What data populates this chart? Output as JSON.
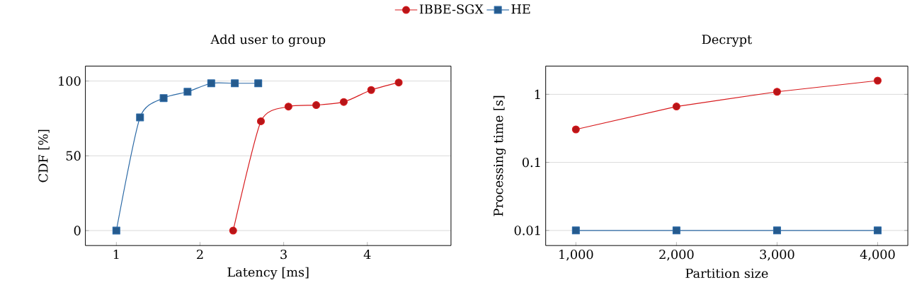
{
  "chart_data": [
    {
      "type": "line",
      "title": "Add user to group",
      "xlabel": "Latency [ms]",
      "ylabel": "CDF [%]",
      "xlim": [
        0.63,
        5.0
      ],
      "ylim": [
        -10,
        110
      ],
      "xticks": [
        1,
        2,
        3,
        4
      ],
      "yticks": [
        0,
        50,
        100
      ],
      "grid": "y",
      "legend": "top",
      "series": [
        {
          "name": "IBBE-SGX",
          "color": "#d7191c",
          "marker": "circle",
          "x": [
            2.396,
            2.728,
            3.057,
            3.389,
            3.718,
            4.046,
            4.375
          ],
          "values": [
            0,
            73.1,
            82.9,
            83.9,
            86.0,
            94.0,
            99.0
          ]
        },
        {
          "name": "HE",
          "color": "#2c6aa6",
          "marker": "square",
          "x": [
            1.0,
            1.283,
            1.565,
            1.851,
            2.134,
            2.416,
            2.696
          ],
          "values": [
            0,
            75.7,
            88.6,
            92.8,
            98.5,
            98.5,
            98.5
          ]
        }
      ]
    },
    {
      "type": "line",
      "title": "Decrypt",
      "xlabel": "Partition size",
      "ylabel": "Processing time [s]",
      "log": "y",
      "xlim": [
        700,
        4300
      ],
      "ylim": [
        0.006,
        2.6
      ],
      "xticks": [
        {
          "value": 1000,
          "label": "1,000"
        },
        {
          "value": 2000,
          "label": "2,000"
        },
        {
          "value": 3000,
          "label": "3,000"
        },
        {
          "value": 4000,
          "label": "4,000"
        }
      ],
      "yticks": [
        0.01,
        0.1,
        1
      ],
      "grid": "y",
      "series": [
        {
          "color": "#d7191c",
          "marker": "circle",
          "x": [
            1000,
            2000,
            3000,
            4000
          ],
          "values": [
            0.305,
            0.662,
            1.09,
            1.59
          ]
        },
        {
          "color": "#2c6aa6",
          "marker": "square",
          "x": [
            1000,
            2000,
            3000,
            4000
          ],
          "values": [
            0.01,
            0.01,
            0.01,
            0.01
          ]
        }
      ]
    }
  ]
}
